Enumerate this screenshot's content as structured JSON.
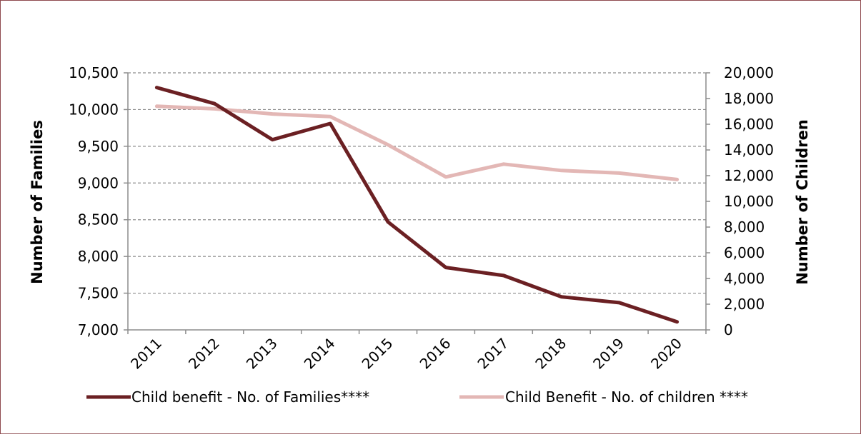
{
  "chart_data": {
    "type": "line",
    "categories": [
      "2011",
      "2012",
      "2013",
      "2014",
      "2015",
      "2016",
      "2017",
      "2018",
      "2019",
      "2020"
    ],
    "y_left": {
      "label": "Number of Families",
      "range": [
        7000,
        10500
      ],
      "ticks": [
        7000,
        7500,
        8000,
        8500,
        9000,
        9500,
        10000,
        10500
      ],
      "tick_labels": [
        "7,000",
        "7,500",
        "8,000",
        "8,500",
        "9,000",
        "9,500",
        "10,000",
        "10,500"
      ]
    },
    "y_right": {
      "label": "Number of Children",
      "range": [
        0,
        20000
      ],
      "ticks": [
        0,
        2000,
        4000,
        6000,
        8000,
        10000,
        12000,
        14000,
        16000,
        18000,
        20000
      ],
      "tick_labels": [
        "0",
        "2,000",
        "4,000",
        "6,000",
        "8,000",
        "10,000",
        "12,000",
        "14,000",
        "16,000",
        "18,000",
        "20,000"
      ]
    },
    "series": [
      {
        "name": "Child benefit - No. of Families****",
        "axis": "left",
        "color": "#6b2023",
        "values": [
          10300,
          10080,
          9590,
          9810,
          8470,
          7850,
          7740,
          7450,
          7370,
          7110
        ]
      },
      {
        "name": "Child Benefit - No. of children ****",
        "axis": "right",
        "color": "#e3b7b5",
        "values": [
          17400,
          17200,
          16800,
          16600,
          14400,
          11900,
          12900,
          12400,
          12200,
          11700
        ]
      }
    ],
    "grid": "horizontal dashed",
    "legend_position": "bottom"
  }
}
